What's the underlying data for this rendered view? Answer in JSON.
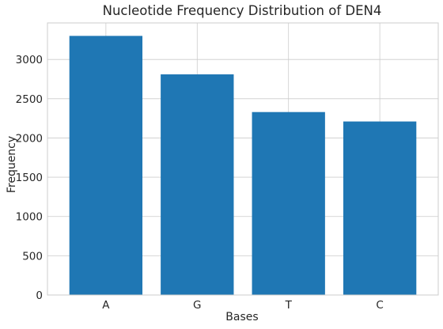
{
  "chart_data": {
    "type": "bar",
    "title": "Nucleotide Frequency Distribution of DEN4",
    "xlabel": "Bases",
    "ylabel": "Frequency",
    "categories": [
      "A",
      "G",
      "T",
      "C"
    ],
    "values": [
      3300,
      2810,
      2330,
      2210
    ],
    "ylim": [
      0,
      3465
    ],
    "yticks": [
      0,
      500,
      1000,
      1500,
      2000,
      2500,
      3000
    ],
    "grid": true,
    "legend": "none",
    "colors": {
      "bar": "#1f77b4",
      "grid": "#cccccc",
      "text": "#262626"
    }
  }
}
